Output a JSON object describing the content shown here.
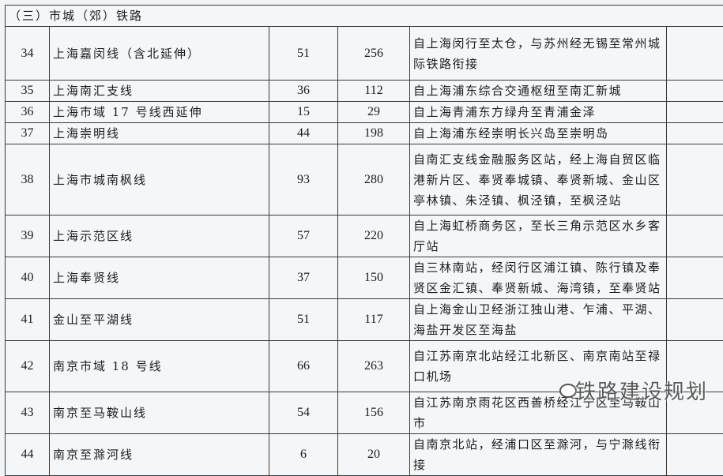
{
  "section_title": "（三）市城（郊）铁路",
  "rows": [
    {
      "no": "34",
      "name": "上海嘉闵线（含北延伸）",
      "a": "51",
      "b": "256",
      "desc": "自上海闵行至太仓，与苏州经无锡至常州城际铁路衔接"
    },
    {
      "no": "35",
      "name": "上海南汇支线",
      "a": "36",
      "b": "112",
      "desc": "自上海浦东综合交通枢纽至南汇新城"
    },
    {
      "no": "36",
      "name": "上海市域 17 号线西延伸",
      "a": "15",
      "b": "29",
      "desc": "自上海青浦东方绿舟至青浦金泽"
    },
    {
      "no": "37",
      "name": "上海崇明线",
      "a": "44",
      "b": "198",
      "desc": "自上海浦东经崇明长兴岛至崇明岛"
    },
    {
      "no": "38",
      "name": "上海市城南枫线",
      "a": "93",
      "b": "280",
      "desc": "自南汇支线金融服务区站，经上海自贸区临港新片区、奉贤奉城镇、奉贤新城、金山区亭林镇、朱泾镇、枫泾镇，至枫泾站"
    },
    {
      "no": "39",
      "name": "上海示范区线",
      "a": "57",
      "b": "220",
      "desc": "自上海虹桥商务区，至长三角示范区水乡客厅站"
    },
    {
      "no": "40",
      "name": "上海奉贤线",
      "a": "37",
      "b": "150",
      "desc": "自三林南站，经闵行区浦江镇、陈行镇及奉贤区金汇镇、奉贤新城、海湾镇，至奉贤站"
    },
    {
      "no": "41",
      "name": "金山至平湖线",
      "a": "51",
      "b": "117",
      "desc": "自上海金山卫经浙江独山港、乍浦、平湖、海盐开发区至海盐"
    },
    {
      "no": "42",
      "name": "南京市域 18 号线",
      "a": "66",
      "b": "263",
      "desc": "自江苏南京北站经江北新区、南京南站至禄口机场"
    },
    {
      "no": "43",
      "name": "南京至马鞍山线",
      "a": "54",
      "b": "156",
      "desc": "自江苏南京雨花区西善桥经江宁区至马鞍山市"
    },
    {
      "no": "44",
      "name": "南京至滁河线",
      "a": "6",
      "b": "20",
      "desc": "自南京北站，经浦口区至滁河，与宁滁线衔接"
    }
  ],
  "watermark": "铁路建设规划"
}
